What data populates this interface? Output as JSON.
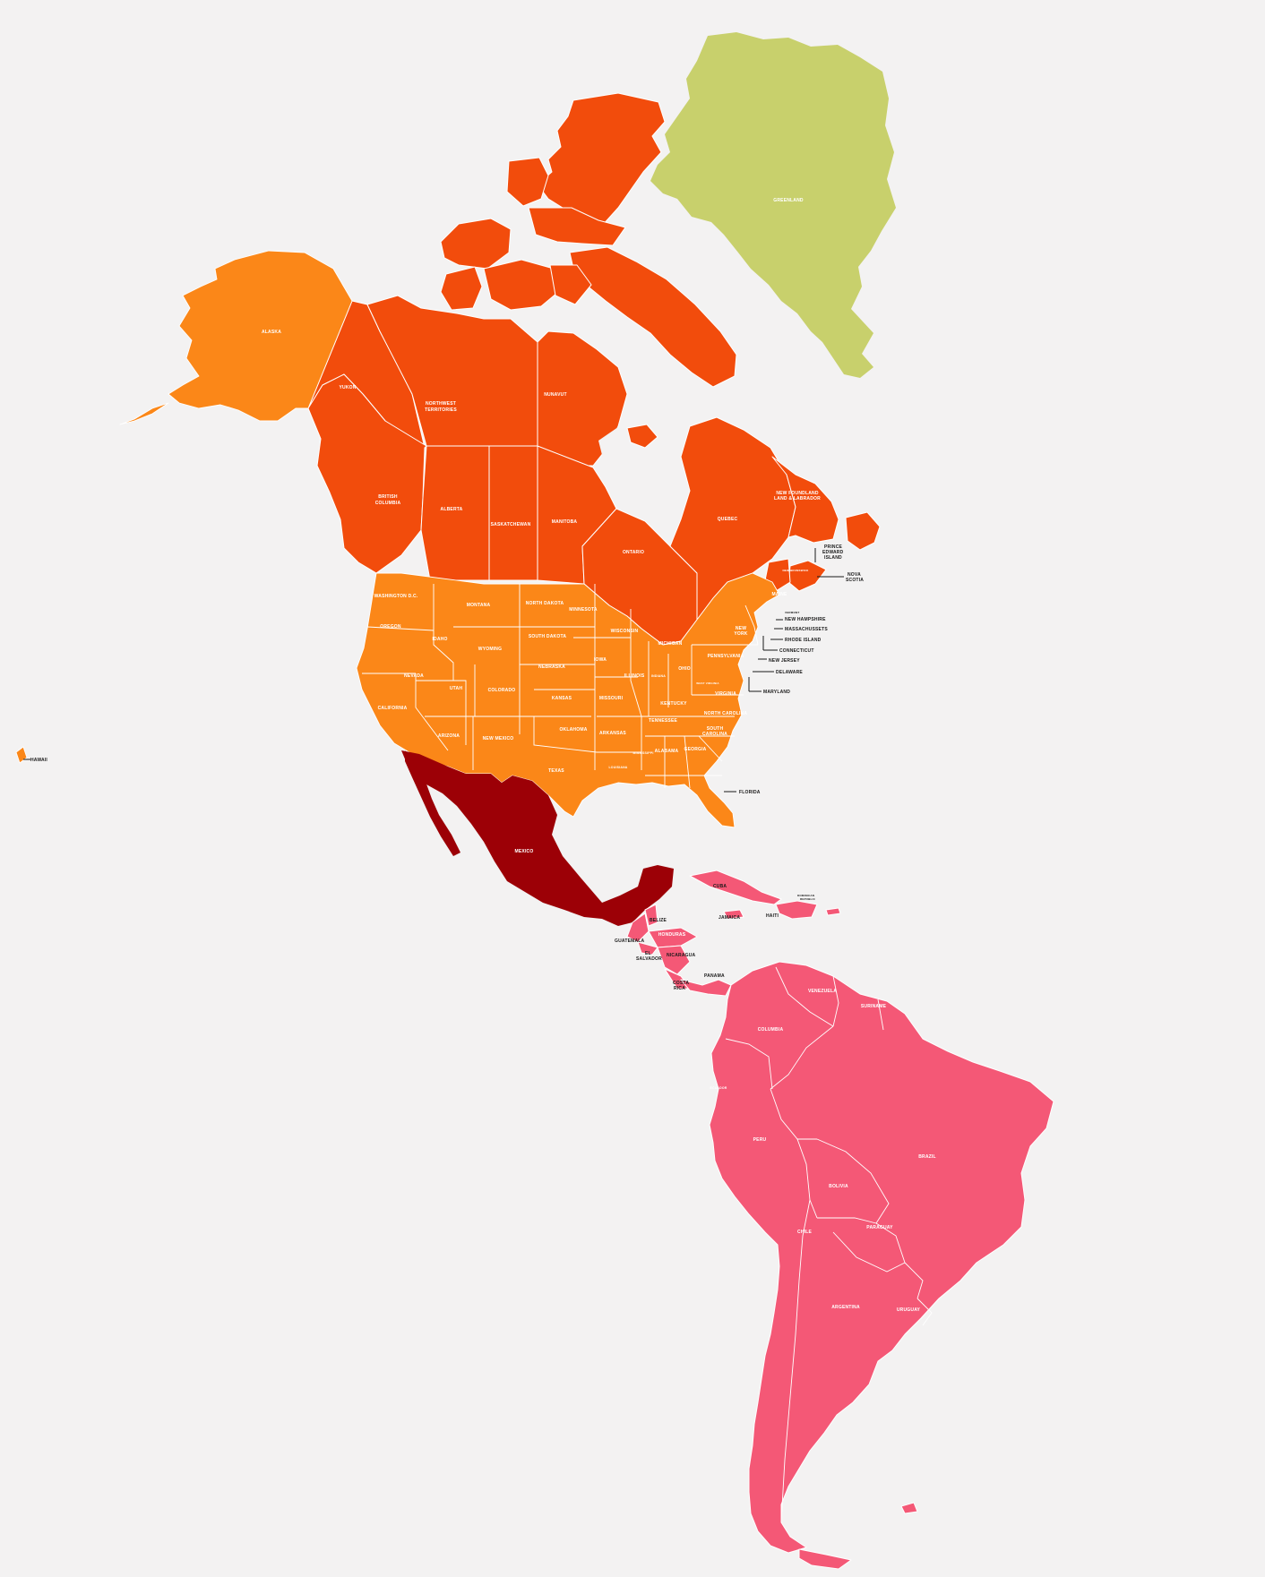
{
  "colors": {
    "background": "#f3f2f2",
    "greenland": "#c8d06c",
    "canada": "#f24c0c",
    "united_states": "#fb8718",
    "mexico": "#9c0006",
    "latin_america": "#f45876",
    "label_light": "#ffffff",
    "label_dark": "#1a1a1a"
  },
  "labels": {
    "greenland": "GREENLAND",
    "canada": {
      "yukon": "YUKON",
      "nwt_1": "NORTHWEST",
      "nwt_2": "TERRITORIES",
      "nunavut": "NUNAVUT",
      "bc_1": "BRITISH",
      "bc_2": "COLUMBIA",
      "alberta": "ALBERTA",
      "saskatchewan": "SASKATCHEWAN",
      "manitoba": "MANITOBA",
      "ontario": "ONTARIO",
      "quebec": "QUEBEC",
      "nl_1": "NEW FOUNDLAND",
      "nl_2": "LAND & LABRADOR",
      "pei_1": "PRINCE",
      "pei_2": "EDWARD",
      "pei_3": "ISLAND",
      "ns_1": "NOVA",
      "ns_2": "SCOTIA",
      "nb": "NEW BRUNSWICK"
    },
    "us": {
      "alaska": "ALASKA",
      "hawaii": "HAWAII",
      "washington": "WASHINGTON D.C.",
      "oregon": "OREGON",
      "california": "CALIFORNIA",
      "nevada": "NEVADA",
      "idaho": "IDAHO",
      "montana": "MONTANA",
      "wyoming": "WYOMING",
      "utah": "UTAH",
      "colorado": "COLORADO",
      "arizona": "ARIZONA",
      "new_mexico": "NEW MEXICO",
      "north_dakota": "NORTH DAKOTA",
      "south_dakota": "SOUTH DAKOTA",
      "nebraska": "NEBRASKA",
      "kansas": "KANSAS",
      "oklahoma": "OKLAHOMA",
      "texas": "TEXAS",
      "minnesota": "MINNESOTA",
      "iowa": "IOWA",
      "missouri": "MISSOURI",
      "arkansas": "ARKANSAS",
      "louisiana": "LOUISIANA",
      "wisconsin": "WISCONSIN",
      "illinois": "ILLINOIS",
      "michigan": "MICHIGAN",
      "indiana": "INDIANA",
      "ohio": "OHIO",
      "kentucky": "KENTUCKY",
      "tennessee": "TENNESSEE",
      "mississippi": "MISSISSIPPI",
      "alabama": "ALABAMA",
      "georgia": "GEORGIA",
      "florida": "FLORIDA",
      "south_carolina_1": "SOUTH",
      "south_carolina_2": "CAROLINA",
      "north_carolina": "NORTH CAROLINA",
      "virginia": "VIRGINIA",
      "west_virginia": "WEST VIRGINIA",
      "pennsylvania": "PENNSYLVANIA",
      "new_york_1": "NEW",
      "new_york_2": "YORK",
      "vermont": "VERMONT",
      "new_hampshire": "NEW HAMPSHIRE",
      "maine": "MAINE",
      "massachussets": "MASSACHUSSETS",
      "rhode_island": "RHODE ISLAND",
      "connecticut": "CONNECTICUT",
      "new_jersey": "NEW JERSEY",
      "delaware": "DELAWARE",
      "maryland": "MARYLAND"
    },
    "central": {
      "mexico": "MEXICO",
      "cuba": "CUBA",
      "jamaica": "JAMAICA",
      "haiti": "HAITI",
      "dr_1": "DOMINICAN",
      "dr_2": "REPUBLIC",
      "belize": "BELIZE",
      "guatemala": "GUATEMALA",
      "honduras": "HONDURAS",
      "el_salvador_1": "EL",
      "el_salvador_2": "SALVADOR",
      "nicaragua": "NICARAGUA",
      "costa_rica_1": "COSTA",
      "costa_rica_2": "RICA",
      "panama": "PANAMA"
    },
    "south": {
      "venezuela": "VENEZUELA",
      "colombia": "COLUMBIA",
      "suriname": "SURINAME",
      "ecuador": "ECUADOR",
      "peru": "PERU",
      "brazil": "BRAZIL",
      "bolivia": "BOLIVIA",
      "paraguay": "PARAGUAY",
      "chile": "CHILE",
      "argentina": "ARGENTINA",
      "uruguay": "URUGUAY"
    }
  }
}
